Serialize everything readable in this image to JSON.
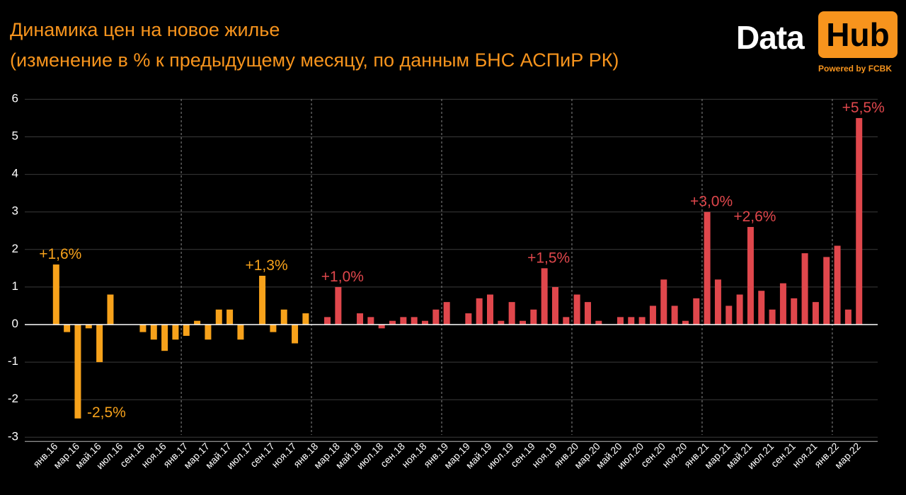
{
  "header": {
    "title_line1": "Динамика цен на новое жилье",
    "title_line2": "(изменение в % к предыдущему месяцу, по данным БНС АСПиР РК)"
  },
  "logo": {
    "word_data": "Data",
    "word_hub": "Hub",
    "tagline": "Powered by FCBK"
  },
  "colors": {
    "background": "#000000",
    "title": "#f7941d",
    "negative_or_early": "#f7a21b",
    "positive": "#e0474c",
    "grid": "#3a3a3a",
    "divider": "#8a8a8a",
    "axis_text": "#ffffff"
  },
  "chart_data": {
    "type": "bar",
    "title": "Динамика цен на новое жилье",
    "subtitle": "(изменение в % к предыдущему месяцу, по данным БНС АСПиР РК)",
    "xlabel": "",
    "ylabel": "",
    "ylim": [
      -3,
      6
    ],
    "yticks": [
      6,
      5,
      4,
      3,
      2,
      1,
      0,
      -1,
      -2,
      -3
    ],
    "grid": true,
    "year_dividers_before": [
      "янв.17",
      "янв.18",
      "янв.19",
      "янв.20",
      "янв.21",
      "янв.22"
    ],
    "categories": [
      "янв.16",
      "фев.16",
      "мар.16",
      "апр.16",
      "май.16",
      "июн.16",
      "июл.16",
      "авг.16",
      "сен.16",
      "окт.16",
      "ноя.16",
      "дек.16",
      "янв.17",
      "фев.17",
      "мар.17",
      "апр.17",
      "май.17",
      "июн.17",
      "июл.17",
      "авг.17",
      "сен.17",
      "окт.17",
      "ноя.17",
      "дек.17",
      "янв.18",
      "фев.18",
      "мар.18",
      "апр.18",
      "май.18",
      "июн.18",
      "июл.18",
      "авг.18",
      "сен.18",
      "окт.18",
      "ноя.18",
      "дек.18",
      "янв.19",
      "фев.19",
      "мар.19",
      "апр.19",
      "май.19",
      "июн.19",
      "июл.19",
      "авг.19",
      "сен.19",
      "окт.19",
      "ноя.19",
      "дек.19",
      "янв.20",
      "фев.20",
      "мар.20",
      "апр.20",
      "май.20",
      "июн.20",
      "июл.20",
      "авг.20",
      "сен.20",
      "окт.20",
      "ноя.20",
      "дек.20",
      "янв.21",
      "фев.21",
      "мар.21",
      "апр.21",
      "май.21",
      "июн.21",
      "июл.21",
      "авг.21",
      "сен.21",
      "окт.21",
      "ноя.21",
      "дек.21",
      "янв.22",
      "фев.22",
      "мар.22"
    ],
    "tick_labels": [
      "янв.16",
      "мар.16",
      "май.16",
      "июл.16",
      "сен.16",
      "ноя.16",
      "янв.17",
      "мар.17",
      "май.17",
      "июл.17",
      "сен.17",
      "ноя.17",
      "янв.18",
      "мар.18",
      "май.18",
      "июл.18",
      "сен.18",
      "ноя.18",
      "янв.19",
      "мар.19",
      "май.19",
      "июл.19",
      "сен.19",
      "ноя.19",
      "янв.20",
      "мар.20",
      "май.20",
      "июл.20",
      "сен.20",
      "ноя.20",
      "янв.21",
      "мар.21",
      "май.21",
      "июл.21",
      "сен.21",
      "ноя.21",
      "янв.22",
      "мар.22"
    ],
    "values": [
      1.6,
      -0.2,
      -2.5,
      -0.1,
      -1.0,
      0.8,
      0.0,
      0.0,
      -0.2,
      -0.4,
      -0.7,
      -0.4,
      -0.3,
      0.1,
      -0.4,
      0.4,
      0.4,
      -0.4,
      0.0,
      1.3,
      -0.2,
      0.4,
      -0.5,
      0.3,
      0.0,
      0.2,
      1.0,
      0.0,
      0.3,
      0.2,
      -0.1,
      0.1,
      0.2,
      0.2,
      0.1,
      0.4,
      0.6,
      0.0,
      0.3,
      0.7,
      0.8,
      0.1,
      0.6,
      0.1,
      0.4,
      1.5,
      1.0,
      0.2,
      0.8,
      0.6,
      0.1,
      0.0,
      0.2,
      0.2,
      0.2,
      0.5,
      1.2,
      0.5,
      0.1,
      0.7,
      3.0,
      1.2,
      0.5,
      0.8,
      2.6,
      0.9,
      0.4,
      1.1,
      0.7,
      1.9,
      0.6,
      1.8,
      2.1,
      0.4,
      5.5
    ],
    "color_rule": "orange before янв.18, red from янв.18",
    "annotations": [
      {
        "category": "янв.16",
        "text": "+1,6%",
        "position": "above"
      },
      {
        "category": "мар.16",
        "text": "-2,5%",
        "position": "right-of-bottom"
      },
      {
        "category": "авг.17",
        "text": "+1,3%",
        "position": "above"
      },
      {
        "category": "мар.18",
        "text": "+1,0%",
        "position": "above"
      },
      {
        "category": "окт.19",
        "text": "+1,5%",
        "position": "above"
      },
      {
        "category": "янв.21",
        "text": "+3,0%",
        "position": "above"
      },
      {
        "category": "мая.21",
        "text": "+2,6%",
        "position": "above"
      },
      {
        "category": "мар.22",
        "text": "+5,5%",
        "position": "above"
      }
    ]
  }
}
